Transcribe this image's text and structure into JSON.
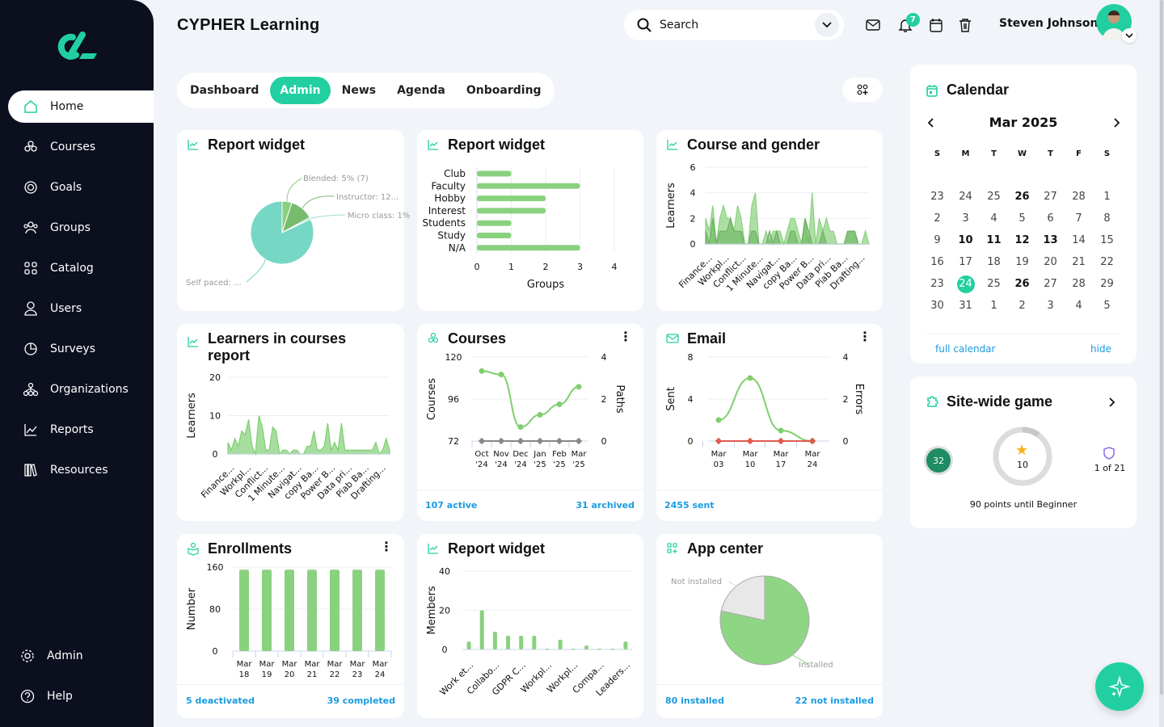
{
  "app": {
    "title": "CYPHER Learning",
    "accent": "#22cfa0",
    "chart_green": "#8ad17f"
  },
  "sidebar": {
    "items": [
      {
        "label": "Home",
        "icon": "home-icon"
      },
      {
        "label": "Courses",
        "icon": "courses-icon"
      },
      {
        "label": "Goals",
        "icon": "target-icon"
      },
      {
        "label": "Groups",
        "icon": "groups-icon"
      },
      {
        "label": "Catalog",
        "icon": "catalog-icon"
      },
      {
        "label": "Users",
        "icon": "user-icon"
      },
      {
        "label": "Surveys",
        "icon": "survey-icon"
      },
      {
        "label": "Organizations",
        "icon": "organization-icon"
      },
      {
        "label": "Reports",
        "icon": "chart-icon"
      },
      {
        "label": "Resources",
        "icon": "books-icon"
      }
    ],
    "bottom": [
      {
        "label": "Admin",
        "icon": "gear-icon"
      },
      {
        "label": "Help",
        "icon": "help-icon"
      }
    ]
  },
  "header": {
    "search_placeholder": "Search",
    "notifications": "7",
    "user_name": "Steven Johnson"
  },
  "tabs": [
    {
      "label": "Dashboard"
    },
    {
      "label": "Admin",
      "active": true
    },
    {
      "label": "News"
    },
    {
      "label": "Agenda"
    },
    {
      "label": "Onboarding"
    }
  ],
  "widgets": {
    "report1": {
      "title": "Report widget"
    },
    "report2": {
      "title": "Report widget"
    },
    "gender": {
      "title": "Course and gender"
    },
    "learners": {
      "title": "Learners in courses report"
    },
    "courses": {
      "title": "Courses",
      "active": "107 active",
      "archived": "31 archived"
    },
    "email": {
      "title": "Email",
      "sent": "2455 sent"
    },
    "enrollments": {
      "title": "Enrollments",
      "deactivated": "5 deactivated",
      "completed": "39 completed"
    },
    "report3": {
      "title": "Report widget"
    },
    "appcenter": {
      "title": "App center",
      "installed": "80 installed",
      "not_installed": "22 not installed"
    }
  },
  "calendar": {
    "title": "Calendar",
    "month": "Mar 2025",
    "weekdays": [
      "S",
      "M",
      "T",
      "W",
      "T",
      "F",
      "S"
    ],
    "days": [
      "23",
      "24",
      "25",
      "26",
      "27",
      "28",
      "1",
      "2",
      "3",
      "4",
      "5",
      "6",
      "7",
      "8",
      "9",
      "10",
      "11",
      "12",
      "13",
      "14",
      "15",
      "16",
      "17",
      "18",
      "19",
      "20",
      "21",
      "22",
      "23",
      "24",
      "25",
      "26",
      "27",
      "28",
      "29",
      "30",
      "31",
      "1",
      "2",
      "3",
      "4",
      "5"
    ],
    "bold_indices": [
      3,
      15,
      16,
      17,
      18,
      31
    ],
    "today_index": 29,
    "full_calendar": "full calendar",
    "hide": "hide"
  },
  "game": {
    "title": "Site-wide game",
    "avatar_level": "32",
    "points": "10",
    "rank": "1 of 21",
    "progress_label": "90 points until Beginner",
    "progress_fraction": 0.1
  },
  "chart_data": [
    {
      "id": "report1",
      "type": "pie",
      "slices": [
        {
          "label": "Blended: 5% (7)",
          "value": 5
        },
        {
          "label": "Instructor: 12...",
          "value": 12
        },
        {
          "label": "Micro class: 1%",
          "value": 1
        },
        {
          "label": "Self paced: ...",
          "value": 82
        }
      ],
      "colors": [
        "#8ad17f",
        "#76bb6e",
        "#a3dccf",
        "#76d7c4"
      ]
    },
    {
      "id": "report2",
      "type": "bar",
      "orientation": "horizontal",
      "categories": [
        "Club",
        "Faculty",
        "Hobby",
        "Interest",
        "Students",
        "Study",
        "N/A"
      ],
      "values": [
        1,
        3,
        2,
        2,
        1,
        1,
        3
      ],
      "xlabel": "Groups",
      "xlim": [
        0,
        4
      ],
      "xticks": [
        "0",
        "1",
        "2",
        "3",
        "4"
      ]
    },
    {
      "id": "gender",
      "type": "area",
      "ylabel": "Learners",
      "ylim": [
        0,
        6
      ],
      "yticks": [
        "0",
        "2",
        "4",
        "6"
      ],
      "xticklabels": [
        "Finance...",
        "Workpl...",
        "Conflict...",
        "1 Minute...",
        "Navigat...",
        "copy Ba...",
        "Power B...",
        "Data pri...",
        "Piab Ba...",
        "Drafting..."
      ],
      "series": [
        {
          "values": [
            2,
            1,
            3,
            0,
            2,
            3,
            2,
            2,
            1,
            3,
            2,
            0,
            0,
            3,
            4,
            0,
            0,
            1,
            0,
            1,
            1,
            1,
            0,
            1,
            2,
            2,
            1,
            0,
            2,
            0,
            4,
            0,
            2,
            1,
            2,
            1,
            1,
            0,
            0,
            0,
            1,
            1,
            1,
            0,
            0,
            1,
            0
          ]
        },
        {
          "values": [
            1,
            0,
            2,
            0,
            1,
            1,
            1,
            2,
            1,
            1,
            1,
            0,
            0,
            1,
            1,
            0,
            0,
            0,
            1,
            0,
            1,
            0,
            0,
            0,
            1,
            1,
            0,
            0,
            2,
            1,
            0,
            0,
            0,
            1,
            0,
            0,
            0,
            0,
            0,
            0,
            1,
            1,
            1,
            0,
            0,
            0,
            0
          ]
        }
      ]
    },
    {
      "id": "learners",
      "type": "area",
      "ylabel": "Learners",
      "ylim": [
        0,
        20
      ],
      "yticks": [
        "0",
        "10",
        "20"
      ],
      "xticklabels": [
        "Finance...",
        "Workpl...",
        "Conflict...",
        "1 Minute...",
        "Navigat...",
        "copy Ba...",
        "Power B...",
        "Data pri...",
        "Piab Ba...",
        "Drafting..."
      ],
      "series": [
        {
          "values": [
            3,
            1,
            4,
            2,
            6,
            5,
            9,
            2,
            0,
            10,
            7,
            1,
            1,
            7,
            6,
            0,
            1,
            1,
            0,
            1,
            1,
            0,
            0,
            2,
            2,
            6,
            1,
            1,
            2,
            8,
            1,
            3,
            1,
            8,
            1,
            1,
            1,
            1,
            1,
            1,
            1,
            1,
            1,
            3,
            0,
            1,
            4,
            1
          ]
        }
      ]
    },
    {
      "id": "courses",
      "type": "line",
      "categories": [
        "Oct '24",
        "Nov '24",
        "Dec '24",
        "Jan '25",
        "Feb '25",
        "Mar '25"
      ],
      "ylabel": "Courses",
      "y2label": "Paths",
      "ylim": [
        72,
        120
      ],
      "y2lim": [
        0,
        4
      ],
      "yticks": [
        "72",
        "96",
        "120"
      ],
      "y2ticks": [
        "0",
        "2",
        "4"
      ],
      "series": [
        {
          "axis": "left",
          "values": [
            112,
            110,
            80,
            87,
            93,
            103
          ],
          "color": "#7fcf6e"
        },
        {
          "axis": "right",
          "values": [
            0,
            0,
            0,
            0,
            0,
            0
          ],
          "color": "#888888"
        }
      ]
    },
    {
      "id": "email",
      "type": "line",
      "categories": [
        "Mar 03",
        "Mar 10",
        "Mar 17",
        "Mar 24"
      ],
      "ylabel": "Sent",
      "y2label": "Errors",
      "ylim": [
        0,
        8
      ],
      "y2lim": [
        0,
        4
      ],
      "yticks": [
        "0",
        "4",
        "8"
      ],
      "y2ticks": [
        "0",
        "2",
        "4"
      ],
      "series": [
        {
          "axis": "left",
          "values": [
            2,
            6,
            1,
            0
          ],
          "color": "#7fcf6e"
        },
        {
          "axis": "right",
          "values": [
            0,
            0,
            0,
            0
          ],
          "color": "#e05a4f"
        }
      ]
    },
    {
      "id": "enrollments",
      "type": "bar",
      "categories": [
        "Mar 18",
        "Mar 19",
        "Mar 20",
        "Mar 21",
        "Mar 22",
        "Mar 23",
        "Mar 24"
      ],
      "values": [
        155,
        155,
        155,
        155,
        155,
        155,
        155
      ],
      "ylabel": "Number",
      "ylim": [
        0,
        160
      ],
      "yticks": [
        "0",
        "80",
        "160"
      ]
    },
    {
      "id": "report3",
      "type": "bar",
      "ylabel": "Members",
      "ylim": [
        0,
        40
      ],
      "yticks": [
        "0",
        "20",
        "40"
      ],
      "values": [
        4,
        20,
        9,
        7,
        7,
        7,
        0,
        5,
        0,
        2,
        0,
        0,
        4
      ],
      "xticklabels": [
        "Work et...",
        "Collabo...",
        "GDPR C...",
        "Workpl...",
        "Workpl...",
        "Compa...",
        "Leaders..."
      ]
    },
    {
      "id": "appcenter",
      "type": "pie",
      "slices": [
        {
          "label": "Installed",
          "value": 80
        },
        {
          "label": "Not installed",
          "value": 22
        }
      ],
      "colors": [
        "#8ed683",
        "#e8e8e8"
      ]
    }
  ]
}
